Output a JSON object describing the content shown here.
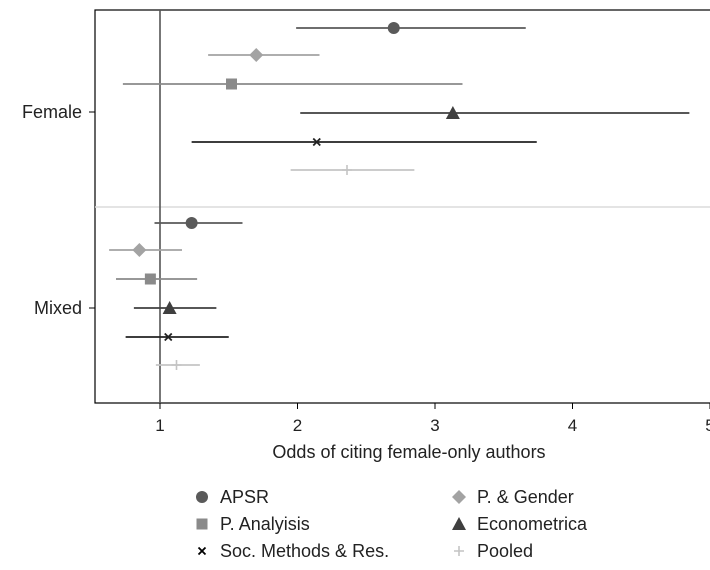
{
  "chart_data": {
    "type": "scatter",
    "subtype": "dot-and-whisker",
    "orientation": "horizontal",
    "xlabel": "Odds of citing female-only authors",
    "x_ticks": [
      "1",
      "2",
      "3",
      "4",
      "5"
    ],
    "xlim": [
      0.53,
      5.0
    ],
    "reference_line_x": 1,
    "categories": [
      "Female",
      "Mixed"
    ],
    "grid": false,
    "legend_position": "bottom",
    "series": [
      {
        "name": "APSR",
        "color": "#5a5a5a",
        "marker": "circle",
        "points": [
          {
            "category": "Female",
            "estimate": 2.7,
            "low": 1.99,
            "high": 3.66
          },
          {
            "category": "Mixed",
            "estimate": 1.23,
            "low": 0.96,
            "high": 1.6
          }
        ]
      },
      {
        "name": "P. & Gender",
        "color": "#a3a3a3",
        "marker": "diamond",
        "points": [
          {
            "category": "Female",
            "estimate": 1.7,
            "low": 1.35,
            "high": 2.16
          },
          {
            "category": "Mixed",
            "estimate": 0.85,
            "low": 0.63,
            "high": 1.16
          }
        ]
      },
      {
        "name": "P. Analyisis",
        "color": "#8a8a8a",
        "marker": "square",
        "points": [
          {
            "category": "Female",
            "estimate": 1.52,
            "low": 0.73,
            "high": 3.2
          },
          {
            "category": "Mixed",
            "estimate": 0.93,
            "low": 0.68,
            "high": 1.27
          }
        ]
      },
      {
        "name": "Econometrica",
        "color": "#3f3f3f",
        "marker": "triangle",
        "points": [
          {
            "category": "Female",
            "estimate": 3.13,
            "low": 2.02,
            "high": 4.85
          },
          {
            "category": "Mixed",
            "estimate": 1.07,
            "low": 0.81,
            "high": 1.41
          }
        ]
      },
      {
        "name": "Soc. Methods & Res.",
        "color": "#222222",
        "marker": "x",
        "points": [
          {
            "category": "Female",
            "estimate": 2.14,
            "low": 1.23,
            "high": 3.74
          },
          {
            "category": "Mixed",
            "estimate": 1.06,
            "low": 0.75,
            "high": 1.5
          }
        ]
      },
      {
        "name": "Pooled",
        "color": "#c4c4c4",
        "marker": "plus",
        "points": [
          {
            "category": "Female",
            "estimate": 2.36,
            "low": 1.95,
            "high": 2.85
          },
          {
            "category": "Mixed",
            "estimate": 1.12,
            "low": 0.97,
            "high": 1.29
          }
        ]
      }
    ]
  }
}
